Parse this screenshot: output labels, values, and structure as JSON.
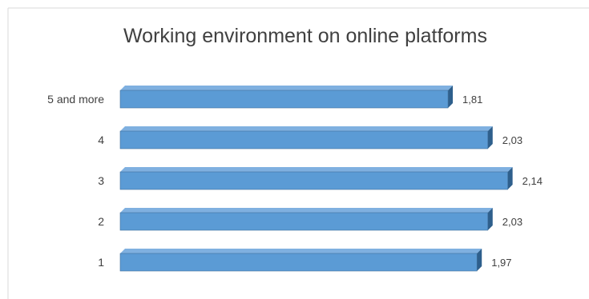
{
  "colors": {
    "bar_front": "#5b9bd5",
    "bar_top": "#7fb0e0",
    "bar_side": "#2e5f8c",
    "bar_edge": "#41719c",
    "text": "#404040",
    "frame": "#d9d9d9"
  },
  "chart_data": {
    "type": "bar",
    "orientation": "horizontal",
    "style": "3d",
    "title": "Working environment on online platforms",
    "xlabel": "",
    "ylabel": "",
    "categories": [
      "5 and more",
      "4",
      "3",
      "2",
      "1"
    ],
    "values": [
      1.81,
      2.03,
      2.14,
      2.03,
      1.97
    ],
    "value_labels": [
      "1,81",
      "2,03",
      "2,14",
      "2,03",
      "1,97"
    ],
    "xlim": [
      0,
      2.3
    ],
    "grid": false,
    "legend": "none"
  }
}
